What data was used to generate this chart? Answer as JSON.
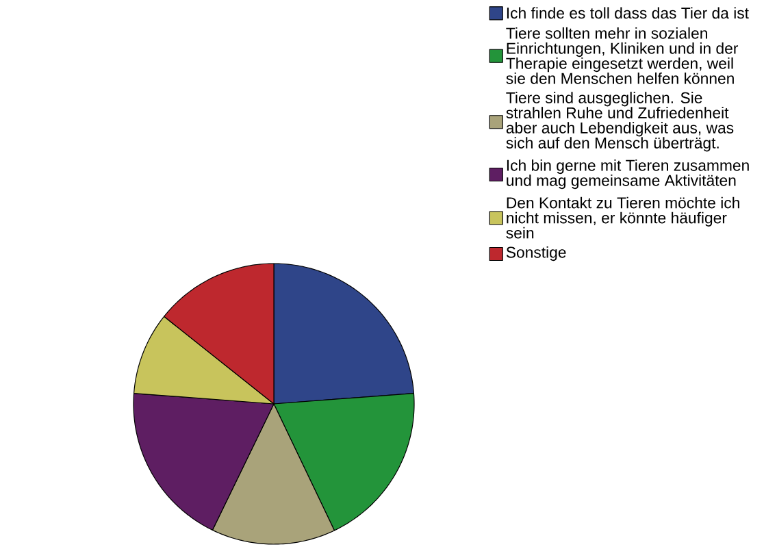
{
  "chart_data": {
    "type": "pie",
    "categories": [
      "Ich finde es toll dass das Tier da ist",
      "Tiere sollten mehr in sozialen Einrichtungen, Kliniken und in der Therapie eingesetzt werden, weil sie den Menschen helfen können",
      "Tiere sind ausgeglichen. Sie strahlen Ruhe und Zufriedenheit aber auch Lebendigkeit aus, was sich auf den Mensch überträgt.",
      "Ich bin gerne mit Tieren zusammen und mag gemeinsame Aktivitäten",
      "Den Kontakt zu Tieren möchte ich nicht missen, er könnte häufiger sein",
      "Sonstige"
    ],
    "values": [
      23.8,
      19.1,
      14.3,
      19,
      9.5,
      14.3
    ],
    "colors": [
      "#2f4589",
      "#23943a",
      "#a9a37a",
      "#5e1e62",
      "#c8c45c",
      "#be282e"
    ],
    "legend": "top right"
  }
}
